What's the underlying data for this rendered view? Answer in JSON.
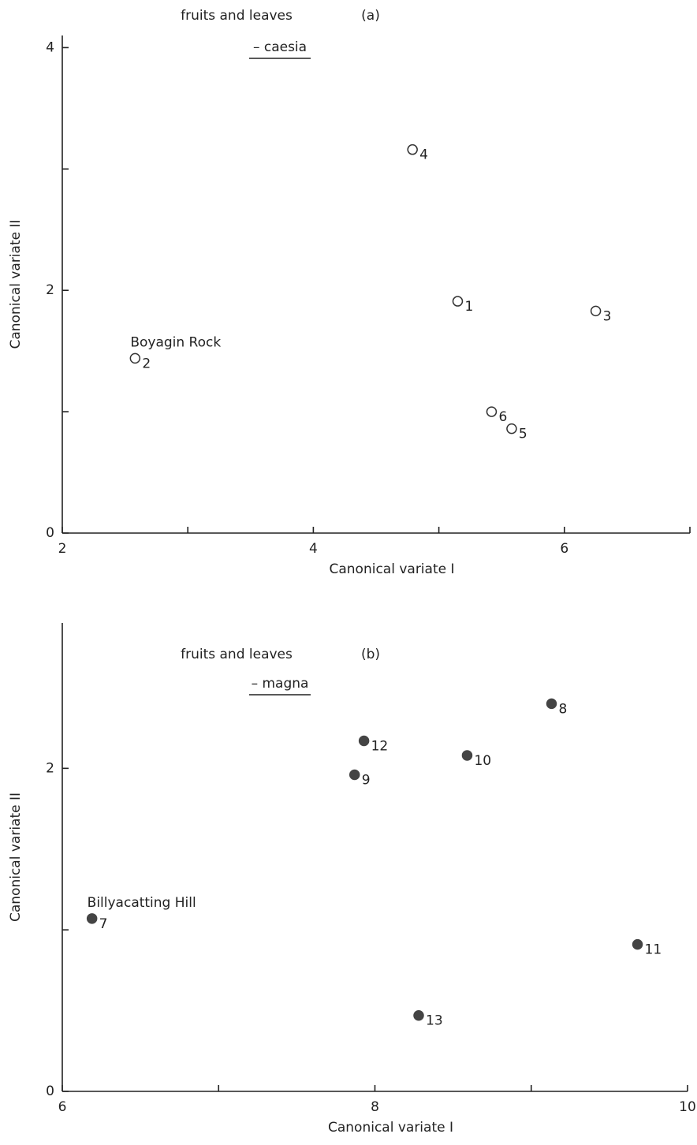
{
  "chart_data": [
    {
      "type": "scatter",
      "title": "fruits and leaves",
      "panel": "(a)",
      "subtitle": "– caesia",
      "x_label": "Canonical variate I",
      "y_label": "Canonical variate II",
      "x": [
        4.79,
        5.15,
        6.25,
        2.58,
        5.42,
        5.58
      ],
      "values": [
        3.16,
        1.91,
        1.83,
        1.44,
        1.0,
        0.86
      ],
      "point_labels": [
        "4",
        "1",
        "3",
        "2",
        "6",
        "5"
      ],
      "annotation": "Boyagin Rock",
      "marker": "open",
      "color": "#333333",
      "xlim": [
        2,
        7
      ],
      "ylim": [
        0,
        4.1
      ],
      "xticks": [
        2,
        4,
        6
      ],
      "yticks": [
        0,
        2,
        4
      ],
      "minor_xticks": [
        3,
        5,
        7
      ],
      "minor_yticks": [
        1,
        3
      ]
    },
    {
      "type": "scatter",
      "title": "fruits and leaves",
      "panel": "(b)",
      "subtitle": "– magna",
      "x_label": "Canonical variate I",
      "y_label": "Canonical variate II",
      "x": [
        9.13,
        7.93,
        8.59,
        7.87,
        6.19,
        9.68,
        8.28
      ],
      "values": [
        2.4,
        2.17,
        2.08,
        1.96,
        1.07,
        0.91,
        0.47
      ],
      "point_labels": [
        "8",
        "12",
        "10",
        "9",
        "7",
        "11",
        "13"
      ],
      "annotation": "Billyacatting Hill",
      "marker": "filled",
      "color": "#444444",
      "xlim": [
        6,
        10
      ],
      "ylim": [
        0,
        2.9
      ],
      "xticks": [
        6,
        8,
        10
      ],
      "yticks": [
        0,
        2
      ],
      "minor_xticks": [
        7,
        9
      ],
      "minor_yticks": [
        1
      ]
    }
  ]
}
